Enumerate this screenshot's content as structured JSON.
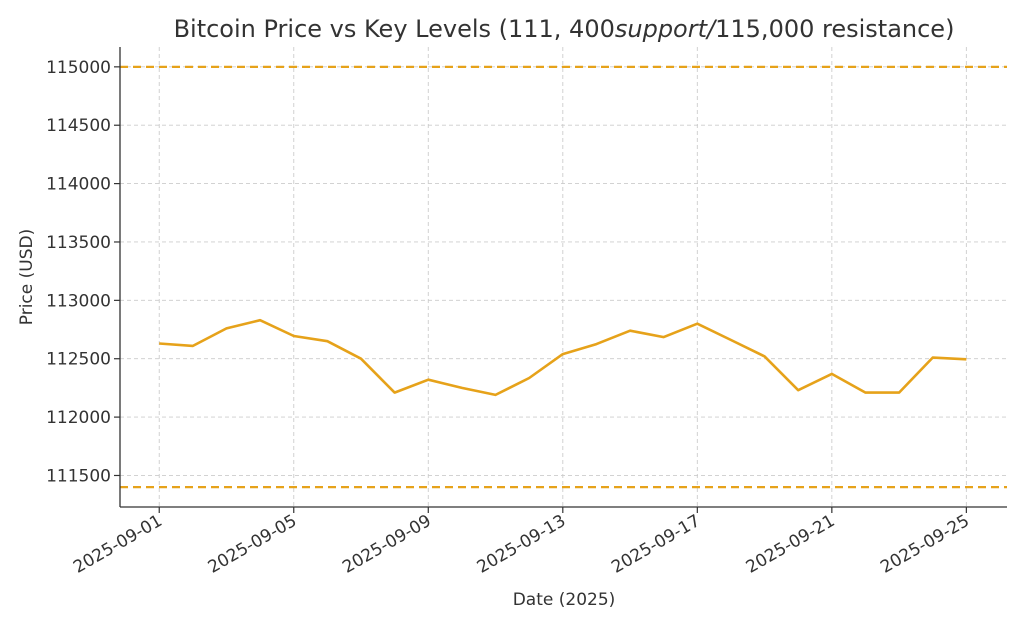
{
  "chart_data": {
    "type": "line",
    "title": {
      "segments": [
        {
          "text": "Bitcoin Price vs Key Levels (111, 400",
          "style": "normal"
        },
        {
          "text": "support",
          "style": "italic"
        },
        {
          "text": "/",
          "style": "italic"
        },
        {
          "text": "115,000 resistance)",
          "style": "normal"
        }
      ]
    },
    "xlabel": "Date (2025)",
    "ylabel": "Price (USD)",
    "ylim": [
      111230,
      115170
    ],
    "xlim": [
      "2025-08-30 20:00",
      "2025-09-26 05:00"
    ],
    "grid": true,
    "y_ticks": [
      111500,
      112000,
      112500,
      113000,
      113500,
      114000,
      114500,
      115000
    ],
    "x_ticks": [
      "2025-09-01",
      "2025-09-05",
      "2025-09-09",
      "2025-09-13",
      "2025-09-17",
      "2025-09-21",
      "2025-09-25"
    ],
    "series": [
      {
        "color": "#e6a21a",
        "x": [
          "2025-09-01",
          "2025-09-02",
          "2025-09-03",
          "2025-09-04",
          "2025-09-05",
          "2025-09-06",
          "2025-09-07",
          "2025-09-08",
          "2025-09-09",
          "2025-09-10",
          "2025-09-11",
          "2025-09-12",
          "2025-09-13",
          "2025-09-14",
          "2025-09-15",
          "2025-09-16",
          "2025-09-17",
          "2025-09-18",
          "2025-09-19",
          "2025-09-20",
          "2025-09-21",
          "2025-09-22",
          "2025-09-23",
          "2025-09-24",
          "2025-09-25"
        ],
        "y": [
          112630,
          112610,
          112760,
          112830,
          112695,
          112650,
          112500,
          112210,
          112320,
          112250,
          112190,
          112335,
          112540,
          112625,
          112740,
          112685,
          112800,
          112660,
          112520,
          112230,
          112370,
          112210,
          112210,
          112510,
          112495
        ]
      }
    ],
    "reference_lines": [
      {
        "y": 115000,
        "color": "#e6a21a",
        "style": "dashed"
      },
      {
        "y": 111400,
        "color": "#e6a21a",
        "style": "dashed"
      }
    ],
    "colors": {
      "text": "#333333",
      "grid": "#cccccc",
      "axis": "#333333"
    }
  }
}
